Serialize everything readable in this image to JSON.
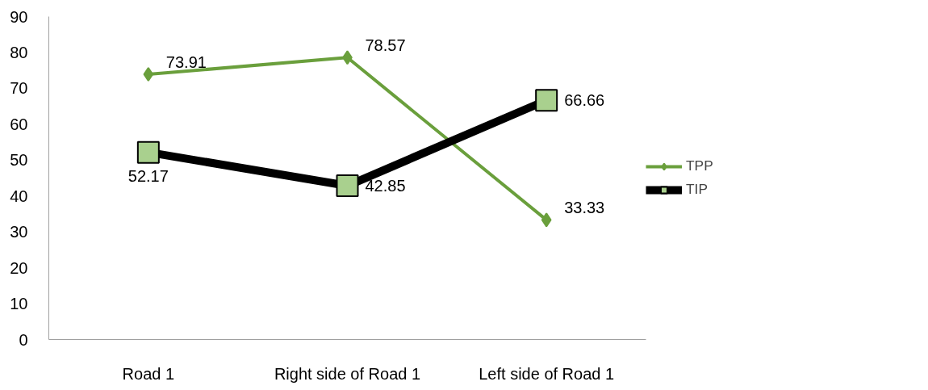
{
  "chart_data": {
    "type": "line",
    "categories": [
      "Road 1",
      "Right side of Road 1",
      "Left side of Road 1"
    ],
    "series": [
      {
        "name": "TPP",
        "color": "#6a9f3c",
        "values": [
          73.91,
          78.57,
          33.33
        ],
        "marker": "diamond"
      },
      {
        "name": "TIP",
        "color": "#000000",
        "values": [
          52.17,
          42.85,
          66.66
        ],
        "marker": "square"
      }
    ],
    "ylim": [
      0,
      90
    ],
    "yticks": [
      0,
      10,
      20,
      30,
      40,
      50,
      60,
      70,
      80,
      90
    ],
    "grid": false,
    "legend": "right",
    "data_labels": true
  }
}
